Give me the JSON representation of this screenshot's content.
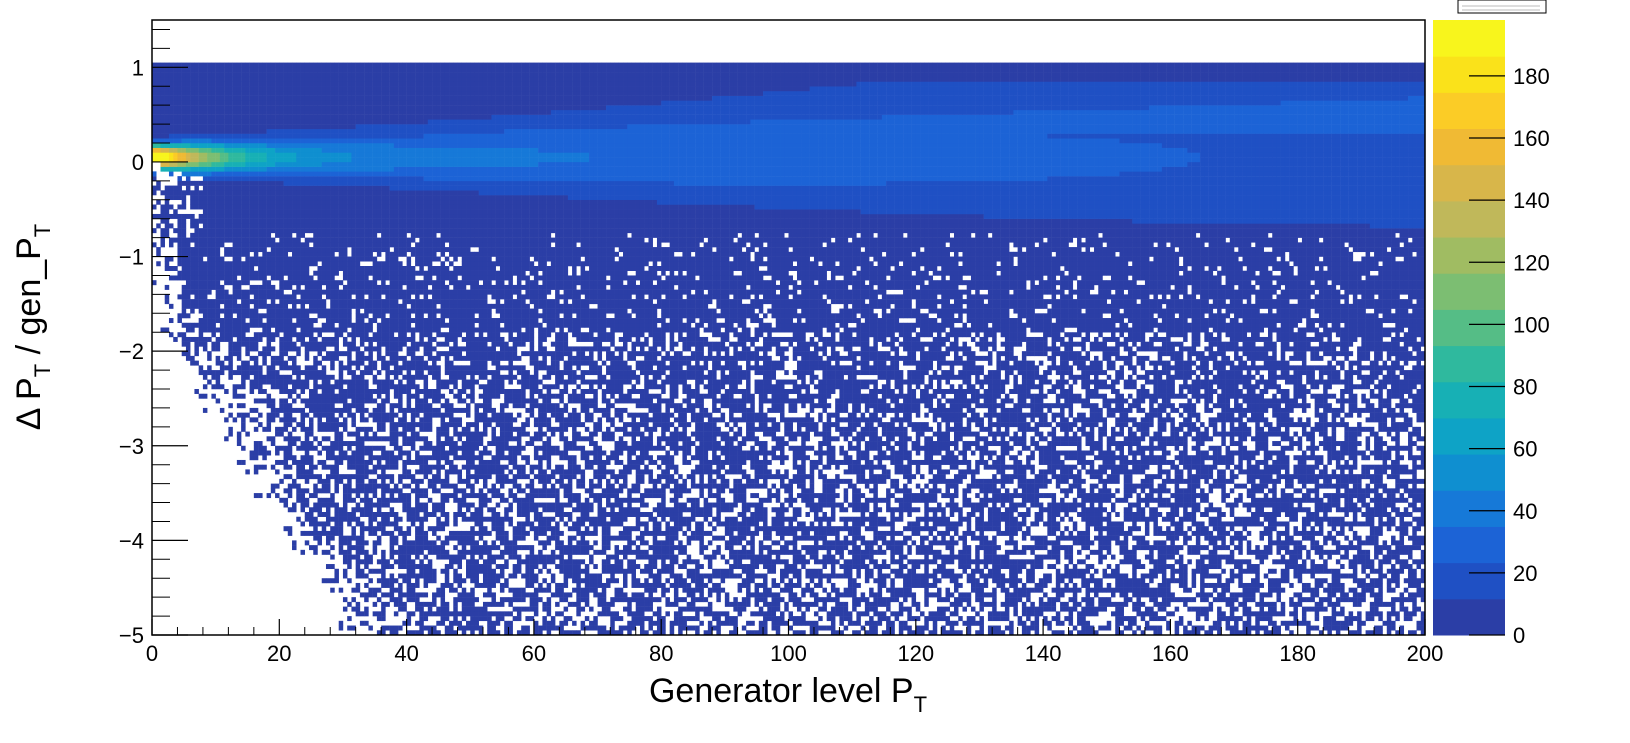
{
  "chart_data": {
    "type": "heatmap",
    "title": "",
    "xlabel": "Generator level P",
    "xlabel_subscript": "T",
    "ylabel": {
      "delta": "Δ",
      "p1": "P",
      "sub1": "T",
      "middle": " / gen_P",
      "sub2": "T"
    },
    "xlim": [
      0,
      200
    ],
    "ylim": [
      -5,
      1.5
    ],
    "x_ticks": [
      "0",
      "20",
      "40",
      "60",
      "80",
      "100",
      "120",
      "140",
      "160",
      "180",
      "200"
    ],
    "x_tick_values": [
      0,
      20,
      40,
      60,
      80,
      100,
      120,
      140,
      160,
      180,
      200
    ],
    "y_ticks": [
      "−5",
      "−4",
      "−3",
      "−2",
      "−1",
      "0",
      "1"
    ],
    "y_tick_values": [
      -5,
      -4,
      -3,
      -2,
      -1,
      0,
      1
    ],
    "colorbar": {
      "zlim": [
        0,
        198
      ],
      "ticks": [
        "0",
        "20",
        "40",
        "60",
        "80",
        "100",
        "120",
        "140",
        "160",
        "180"
      ],
      "tick_values": [
        0,
        20,
        40,
        60,
        80,
        100,
        120,
        140,
        160,
        180
      ],
      "palette": [
        "#2b3ea6",
        "#1f50c4",
        "#1c63d6",
        "#1679d8",
        "#0f8fd0",
        "#0ea3c6",
        "#17b0b5",
        "#2fb99e",
        "#55bd86",
        "#7cbe72",
        "#a0bc62",
        "#c0b85a",
        "#d8b64a",
        "#f0ba34",
        "#fbcc26",
        "#fae21a",
        "#f8f51c"
      ]
    },
    "distribution": {
      "core_y": 0.05,
      "core_peak_z": 198,
      "band_upper_y": 1.03,
      "saturation_y": 1.03
    }
  }
}
